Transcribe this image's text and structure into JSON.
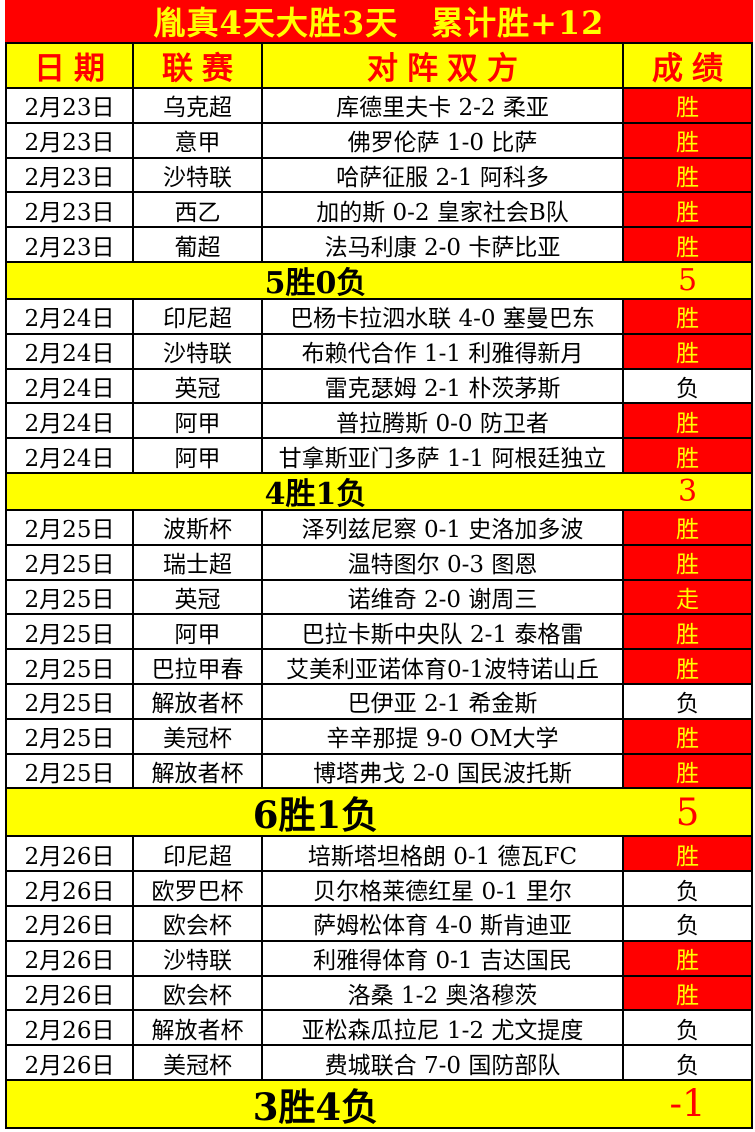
{
  "banner": {
    "title": "胤真4天大胜3天　累计胜+12"
  },
  "colors": {
    "red": "#ff0000",
    "yellow": "#ffff00",
    "win_text": "#ffff00",
    "loss_text": "#000000"
  },
  "table": {
    "headers": {
      "date": "日期",
      "league": "联赛",
      "match": "对阵双方",
      "result": "成绩"
    },
    "blocks": [
      {
        "rows": [
          {
            "date": "2月23日",
            "league": "乌克超",
            "match": "库德里夫卡 2-2 柔亚",
            "result": "胜",
            "status": "win"
          },
          {
            "date": "2月23日",
            "league": "意甲",
            "match": "佛罗伦萨 1-0 比萨",
            "result": "胜",
            "status": "win"
          },
          {
            "date": "2月23日",
            "league": "沙特联",
            "match": "哈萨征服 2-1 阿科多",
            "result": "胜",
            "status": "win"
          },
          {
            "date": "2月23日",
            "league": "西乙",
            "match": "加的斯 0-2 皇家社会B队",
            "result": "胜",
            "status": "win"
          },
          {
            "date": "2月23日",
            "league": "葡超",
            "match": "法马利康 2-0 卡萨比亚",
            "result": "胜",
            "status": "win"
          }
        ],
        "summary": {
          "label": "5胜0负",
          "score": "5"
        }
      },
      {
        "rows": [
          {
            "date": "2月24日",
            "league": "印尼超",
            "match": "巴杨卡拉泗水联 4-0 塞曼巴东",
            "result": "胜",
            "status": "win"
          },
          {
            "date": "2月24日",
            "league": "沙特联",
            "match": "布赖代合作 1-1 利雅得新月",
            "result": "胜",
            "status": "win"
          },
          {
            "date": "2月24日",
            "league": "英冠",
            "match": "雷克瑟姆 2-1 朴茨茅斯",
            "result": "负",
            "status": "loss"
          },
          {
            "date": "2月24日",
            "league": "阿甲",
            "match": "普拉腾斯 0-0 防卫者",
            "result": "胜",
            "status": "win"
          },
          {
            "date": "2月24日",
            "league": "阿甲",
            "match": "甘拿斯亚门多萨 1-1 阿根廷独立",
            "result": "胜",
            "status": "win"
          }
        ],
        "summary": {
          "label": "4胜1负",
          "score": "3"
        }
      },
      {
        "rows": [
          {
            "date": "2月25日",
            "league": "波斯杯",
            "match": "泽列兹尼察 0-1 史洛加多波",
            "result": "胜",
            "status": "win"
          },
          {
            "date": "2月25日",
            "league": "瑞士超",
            "match": "温特图尔 0-3 图恩",
            "result": "胜",
            "status": "win"
          },
          {
            "date": "2月25日",
            "league": "英冠",
            "match": "诺维奇 2-0 谢周三",
            "result": "走",
            "status": "push"
          },
          {
            "date": "2月25日",
            "league": "阿甲",
            "match": "巴拉卡斯中央队 2-1 泰格雷",
            "result": "胜",
            "status": "win"
          },
          {
            "date": "2月25日",
            "league": "巴拉甲春",
            "match": "艾美利亚诺体育0-1波特诺山丘",
            "result": "胜",
            "status": "win"
          },
          {
            "date": "2月25日",
            "league": "解放者杯",
            "match": "巴伊亚 2-1 希金斯",
            "result": "负",
            "status": "loss"
          },
          {
            "date": "2月25日",
            "league": "美冠杯",
            "match": "辛辛那提 9-0 OM大学",
            "result": "胜",
            "status": "win"
          },
          {
            "date": "2月25日",
            "league": "解放者杯",
            "match": "博塔弗戈 2-0 国民波托斯",
            "result": "胜",
            "status": "win"
          }
        ],
        "summary": {
          "label": "6胜1负",
          "score": "5"
        }
      },
      {
        "rows": [
          {
            "date": "2月26日",
            "league": "印尼超",
            "match": "培斯塔坦格朗 0-1 德瓦FC",
            "result": "胜",
            "status": "win"
          },
          {
            "date": "2月26日",
            "league": "欧罗巴杯",
            "match": "贝尔格莱德红星 0-1 里尔",
            "result": "负",
            "status": "loss"
          },
          {
            "date": "2月26日",
            "league": "欧会杯",
            "match": "萨姆松体育 4-0 斯肯迪亚",
            "result": "负",
            "status": "loss"
          },
          {
            "date": "2月26日",
            "league": "沙特联",
            "match": "利雅得体育 0-1 吉达国民",
            "result": "胜",
            "status": "win"
          },
          {
            "date": "2月26日",
            "league": "欧会杯",
            "match": "洛桑 1-2 奥洛穆茨",
            "result": "胜",
            "status": "win"
          },
          {
            "date": "2月26日",
            "league": "解放者杯",
            "match": "亚松森瓜拉尼 1-2 尤文提度",
            "result": "负",
            "status": "loss"
          },
          {
            "date": "2月26日",
            "league": "美冠杯",
            "match": "费城联合 7-0 国防部队",
            "result": "负",
            "status": "loss"
          }
        ],
        "summary": {
          "label": "3胜4负",
          "score": "-1"
        }
      }
    ]
  }
}
